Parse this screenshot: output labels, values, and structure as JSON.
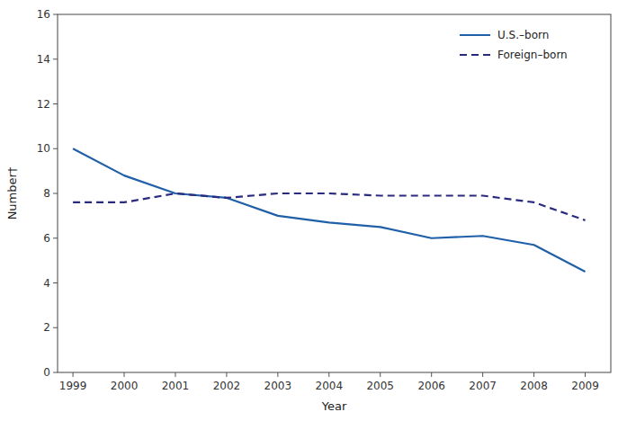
{
  "chart_data": {
    "type": "line",
    "x": [
      1999,
      2000,
      2001,
      2002,
      2003,
      2004,
      2005,
      2006,
      2007,
      2008,
      2009
    ],
    "series": [
      {
        "name": "U.S.–born",
        "color": "#2060a8",
        "line_style": "solid",
        "values": [
          10.0,
          8.8,
          8.0,
          7.8,
          7.0,
          6.7,
          6.5,
          6.0,
          6.1,
          5.7,
          4.5
        ]
      },
      {
        "name": "Foreign–born",
        "color": "#2a2a80",
        "line_style": "dashed",
        "values": [
          7.6,
          7.6,
          8.0,
          7.8,
          8.0,
          8.0,
          7.9,
          7.9,
          7.9,
          7.6,
          6.8
        ]
      }
    ],
    "xlabel": "Year",
    "ylabel": "Number†",
    "xlim": [
      1998.7,
      2009.5
    ],
    "xticks": [
      1999,
      2000,
      2001,
      2002,
      2003,
      2004,
      2005,
      2006,
      2007,
      2008,
      2009
    ],
    "ylim": [
      0,
      16
    ],
    "yticks": [
      0,
      2,
      4,
      6,
      8,
      10,
      12,
      14,
      16
    ],
    "grid": false,
    "legend": "upper right"
  }
}
